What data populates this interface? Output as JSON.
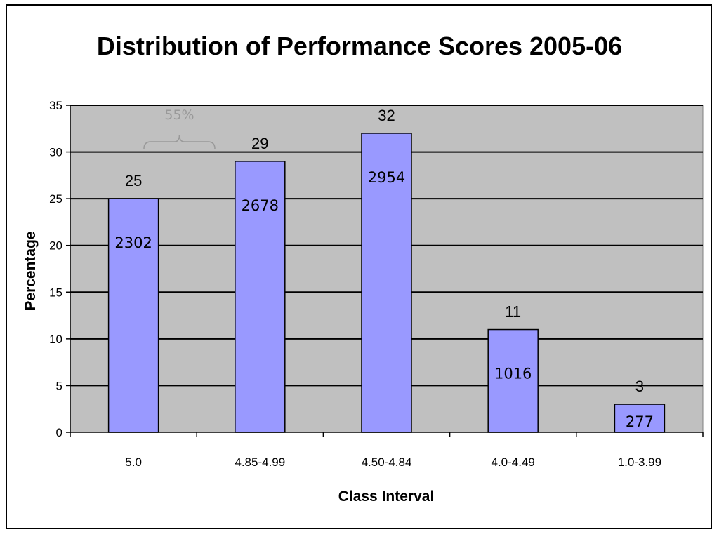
{
  "chart_data": {
    "type": "bar",
    "title": "Distribution of Performance Scores 2005-06",
    "xlabel": "Class Interval",
    "ylabel": "Percentage",
    "categories": [
      "5.0",
      "4.85-4.99",
      "4.50-4.84",
      "4.0-4.49",
      "1.0-3.99"
    ],
    "values": [
      25,
      29,
      32,
      11,
      3
    ],
    "value_labels": [
      "25",
      "29",
      "32",
      "11",
      "3"
    ],
    "counts": [
      "2302",
      "2678",
      "2954",
      "1016",
      "277"
    ],
    "ylim": [
      0,
      35
    ],
    "yticks": [
      0,
      5,
      10,
      15,
      20,
      25,
      30,
      35
    ],
    "ytick_labels": [
      "0",
      "5",
      "10",
      "15",
      "20",
      "25",
      "30",
      "35"
    ],
    "grid": true,
    "annotation": {
      "text": "55%",
      "spans_categories": [
        "5.0",
        "4.85-4.99"
      ]
    },
    "colors": {
      "bar": "#9999FF",
      "plot_background": "#C0C0C0",
      "gridline": "#000000",
      "annotation": "#999999"
    }
  }
}
